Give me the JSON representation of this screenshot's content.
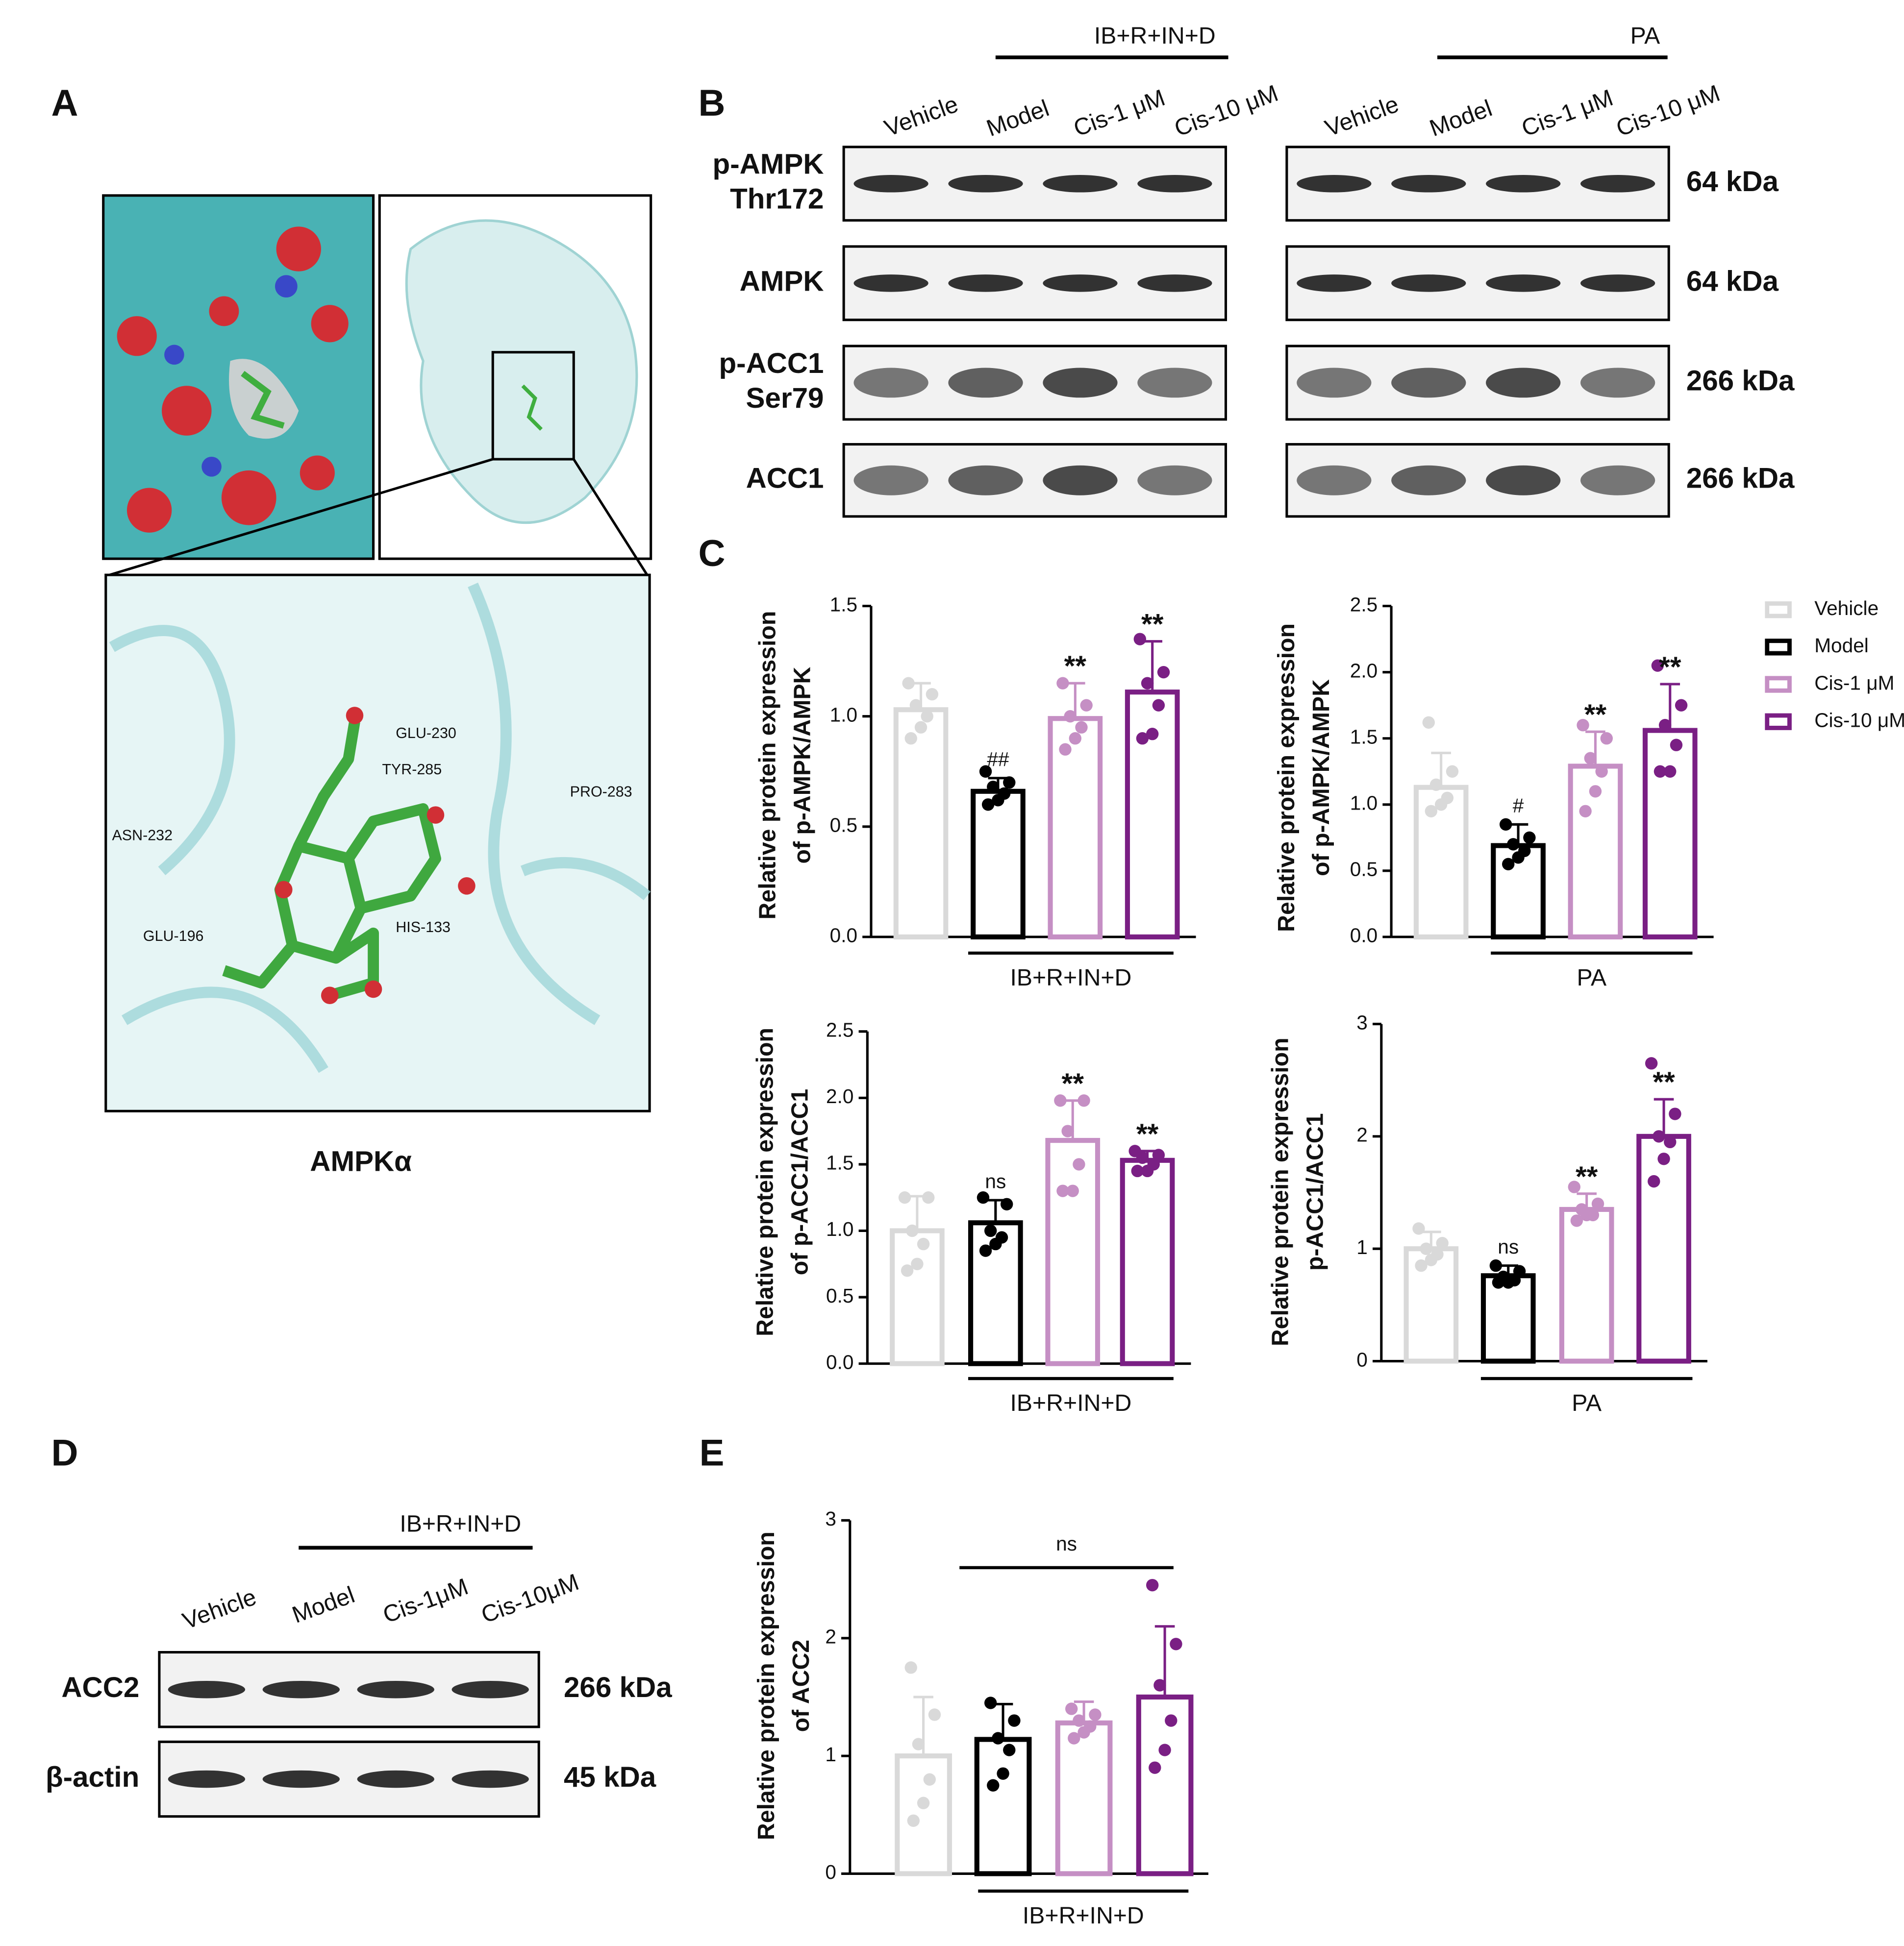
{
  "panel_labels": [
    "A",
    "B",
    "C",
    "D",
    "E"
  ],
  "docking": {
    "residues": [
      "GLU-230",
      "TYR-285",
      "PRO-283",
      "ASN-232",
      "GLU-196",
      "HIS-133"
    ],
    "caption": "AMPKα"
  },
  "blot_b": {
    "groups": [
      "IB+R+IN+D",
      "PA"
    ],
    "lanes": [
      "Vehicle",
      "Model",
      "Cis-1 μM",
      "Cis-10 μM"
    ],
    "rows": [
      {
        "label": [
          "p-AMPK",
          "Thr172"
        ],
        "size": "64 kDa"
      },
      {
        "label": [
          "AMPK"
        ],
        "size": "64 kDa"
      },
      {
        "label": [
          "p-ACC1",
          "Ser79"
        ],
        "size": "266 kDa"
      },
      {
        "label": [
          "ACC1"
        ],
        "size": "266 kDa"
      }
    ]
  },
  "blot_d": {
    "group": "IB+R+IN+D",
    "lanes": [
      "Vehicle",
      "Model",
      "Cis-1μM",
      "Cis-10μM"
    ],
    "rows": [
      {
        "label": "ACC2",
        "size": "266 kDa"
      },
      {
        "label": "β-actin",
        "size": "45 kDa"
      }
    ]
  },
  "chart_data": [
    {
      "type": "bar",
      "ylabel": [
        "Relative protein expression",
        "of p-AMPK/AMPK"
      ],
      "group_label": "IB+R+IN+D",
      "colors": [
        "#d9d9d9",
        "#000000",
        "#c58fc4",
        "#7a1f84"
      ],
      "values": [
        1.03,
        0.66,
        0.99,
        1.11
      ],
      "errors": [
        0.12,
        0.06,
        0.16,
        0.23
      ],
      "points": [
        [
          1.15,
          1.1,
          1.05,
          1.0,
          0.95,
          0.9
        ],
        [
          0.75,
          0.7,
          0.68,
          0.65,
          0.62,
          0.6
        ],
        [
          1.15,
          1.05,
          1.0,
          0.95,
          0.9,
          0.85
        ],
        [
          1.35,
          1.2,
          1.15,
          1.05,
          0.92,
          0.9
        ]
      ],
      "annotations": [
        null,
        "##",
        "**",
        "**"
      ],
      "ylim": [
        0,
        1.5
      ],
      "yticks": [
        {
          "value": 0,
          "label": "0.0"
        },
        0.5,
        {
          "value": 1,
          "label": "1.0"
        },
        1.5
      ]
    },
    {
      "type": "bar",
      "ylabel": [
        "Relative protein expression",
        "of p-AMPK/AMPK"
      ],
      "group_label": "PA",
      "colors": [
        "#d9d9d9",
        "#000000",
        "#c58fc4",
        "#7a1f84"
      ],
      "values": [
        1.13,
        0.69,
        1.29,
        1.56
      ],
      "errors": [
        0.26,
        0.16,
        0.26,
        0.35
      ],
      "points": [
        [
          1.62,
          1.25,
          1.15,
          1.05,
          1.0,
          0.95
        ],
        [
          0.85,
          0.75,
          0.7,
          0.65,
          0.6,
          0.55
        ],
        [
          1.6,
          1.5,
          1.35,
          1.25,
          1.1,
          0.95
        ],
        [
          2.05,
          1.75,
          1.6,
          1.45,
          1.25,
          1.25
        ]
      ],
      "annotations": [
        null,
        "#",
        "**",
        "**"
      ],
      "legend": {
        "position": "right",
        "entries": [
          "Vehicle",
          "Model",
          "Cis-1 μM",
          "Cis-10 μM"
        ]
      },
      "ylim": [
        0,
        2.5
      ],
      "yticks": [
        {
          "value": 0,
          "label": "0.0"
        },
        0.5,
        {
          "value": 1,
          "label": "1.0"
        },
        1.5,
        {
          "value": 2,
          "label": "2.0"
        },
        2.5
      ]
    },
    {
      "type": "bar",
      "ylabel": [
        "Relative protein expression",
        "of p-ACC1/ACC1"
      ],
      "group_label": "IB+R+IN+D",
      "colors": [
        "#d9d9d9",
        "#000000",
        "#c58fc4",
        "#7a1f84"
      ],
      "values": [
        1.0,
        1.06,
        1.68,
        1.53
      ],
      "errors": [
        0.26,
        0.17,
        0.3,
        0.07
      ],
      "points": [
        [
          1.25,
          1.25,
          1.0,
          0.9,
          0.75,
          0.7
        ],
        [
          1.25,
          1.2,
          1.0,
          0.95,
          0.9,
          0.85
        ],
        [
          1.98,
          1.98,
          1.75,
          1.5,
          1.3,
          1.3
        ],
        [
          1.6,
          1.57,
          1.55,
          1.5,
          1.45,
          1.45
        ]
      ],
      "annotations": [
        null,
        "ns",
        "**",
        "**"
      ],
      "ylim": [
        0,
        2.5
      ],
      "yticks": [
        {
          "value": 0,
          "label": "0.0"
        },
        0.5,
        {
          "value": 1,
          "label": "1.0"
        },
        1.5,
        {
          "value": 2,
          "label": "2.0"
        },
        2.5
      ]
    },
    {
      "type": "bar",
      "ylabel": [
        "Relative protein expression",
        "p-ACC1/ACC1"
      ],
      "group_label": "PA",
      "colors": [
        "#d9d9d9",
        "#000000",
        "#c58fc4",
        "#7a1f84"
      ],
      "values": [
        1.0,
        0.76,
        1.35,
        2.0
      ],
      "errors": [
        0.15,
        0.09,
        0.14,
        0.33
      ],
      "points": [
        [
          1.18,
          1.05,
          1.0,
          0.95,
          0.9,
          0.85
        ],
        [
          0.85,
          0.8,
          0.75,
          0.72,
          0.7,
          0.7
        ],
        [
          1.55,
          1.4,
          1.35,
          1.3,
          1.3,
          1.25
        ],
        [
          2.65,
          2.2,
          2.0,
          1.95,
          1.8,
          1.6
        ]
      ],
      "annotations": [
        null,
        "ns",
        "**",
        "**"
      ],
      "ylim": [
        0,
        3
      ],
      "yticks": [
        0,
        1,
        2,
        3
      ]
    },
    {
      "type": "bar",
      "ylabel": [
        "Relative protein expression",
        "of ACC2"
      ],
      "group_label": "IB+R+IN+D",
      "colors": [
        "#d9d9d9",
        "#000000",
        "#c58fc4",
        "#7a1f84"
      ],
      "values": [
        1.0,
        1.14,
        1.28,
        1.5
      ],
      "errors": [
        0.5,
        0.3,
        0.18,
        0.6
      ],
      "points": [
        [
          1.75,
          1.35,
          1.1,
          0.8,
          0.6,
          0.45
        ],
        [
          1.45,
          1.3,
          1.15,
          1.05,
          0.85,
          0.75
        ],
        [
          1.4,
          1.35,
          1.3,
          1.25,
          1.2,
          1.15
        ],
        [
          2.45,
          1.95,
          1.6,
          1.3,
          1.05,
          0.9
        ]
      ],
      "bracket_label": "ns",
      "ylim": [
        0,
        3
      ],
      "yticks": [
        0,
        1,
        2,
        3
      ]
    }
  ]
}
